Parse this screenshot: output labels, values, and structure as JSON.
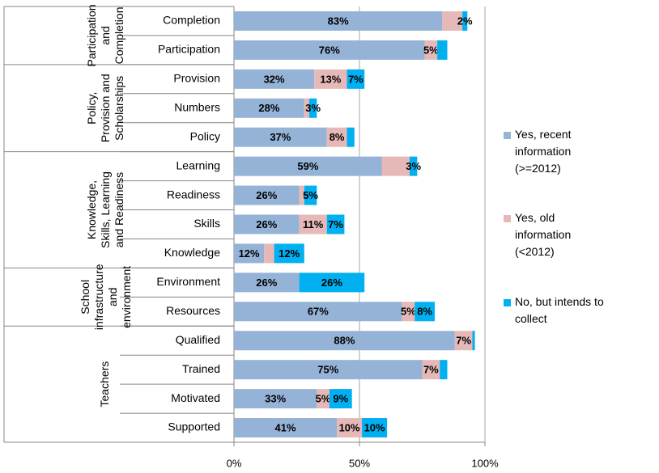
{
  "chart_data": {
    "type": "stacked_bar_horizontal",
    "categories": [
      "Completion",
      "Participation",
      "Provision",
      "Numbers",
      "Policy",
      "Learning",
      "Readiness",
      "Skills",
      "Knowledge",
      "Environment",
      "Resources",
      "Qualified",
      "Trained",
      "Motivated",
      "Supported"
    ],
    "groups": [
      {
        "label": "Participation and Completion",
        "start": 0,
        "end": 1
      },
      {
        "label": "Policy, Provision and Scholarships",
        "start": 2,
        "end": 4
      },
      {
        "label": "Knowledge, Skills, Learning and Readiness",
        "start": 5,
        "end": 8
      },
      {
        "label": "School infrastructure and environment",
        "start": 9,
        "end": 10
      },
      {
        "label": "Teachers",
        "start": 11,
        "end": 14
      }
    ],
    "series": [
      {
        "name": "Yes, recent information (>=2012)",
        "color": "#95b3d7",
        "values": [
          83,
          76,
          32,
          28,
          37,
          59,
          26,
          26,
          12,
          26,
          67,
          88,
          75,
          33,
          41
        ],
        "value_labels": [
          "83%",
          "76%",
          "32%",
          "28%",
          "37%",
          "59%",
          "26%",
          "26%",
          "12%",
          "26%",
          "67%",
          "88%",
          "75%",
          "33%",
          "41%"
        ]
      },
      {
        "name": "Yes, old information (<2012)",
        "color": "#e6b9b8",
        "values": [
          8,
          5,
          13,
          2,
          8,
          11,
          2,
          11,
          4,
          0,
          5,
          7,
          7,
          5,
          10
        ],
        "value_labels": [
          null,
          "5%",
          "13%",
          null,
          "8%",
          null,
          null,
          "11%",
          null,
          null,
          "5%",
          "7%",
          "7%",
          "5%",
          "10%"
        ]
      },
      {
        "name": "No, but intends to collect",
        "color": "#00b0f0",
        "values": [
          2,
          4,
          7,
          3,
          3,
          3,
          5,
          7,
          12,
          26,
          8,
          1,
          3,
          9,
          10
        ],
        "value_labels": [
          "2%",
          null,
          "7%",
          "3%",
          null,
          "3%",
          "5%",
          "7%",
          "12%",
          "26%",
          "8%",
          null,
          null,
          "9%",
          "10%"
        ]
      }
    ],
    "xlim": [
      0,
      100
    ],
    "xticks": [
      {
        "value": 0,
        "label": "0%"
      },
      {
        "value": 50,
        "label": "50%"
      },
      {
        "value": 100,
        "label": "100%"
      }
    ],
    "grid": true,
    "legend": "right"
  }
}
